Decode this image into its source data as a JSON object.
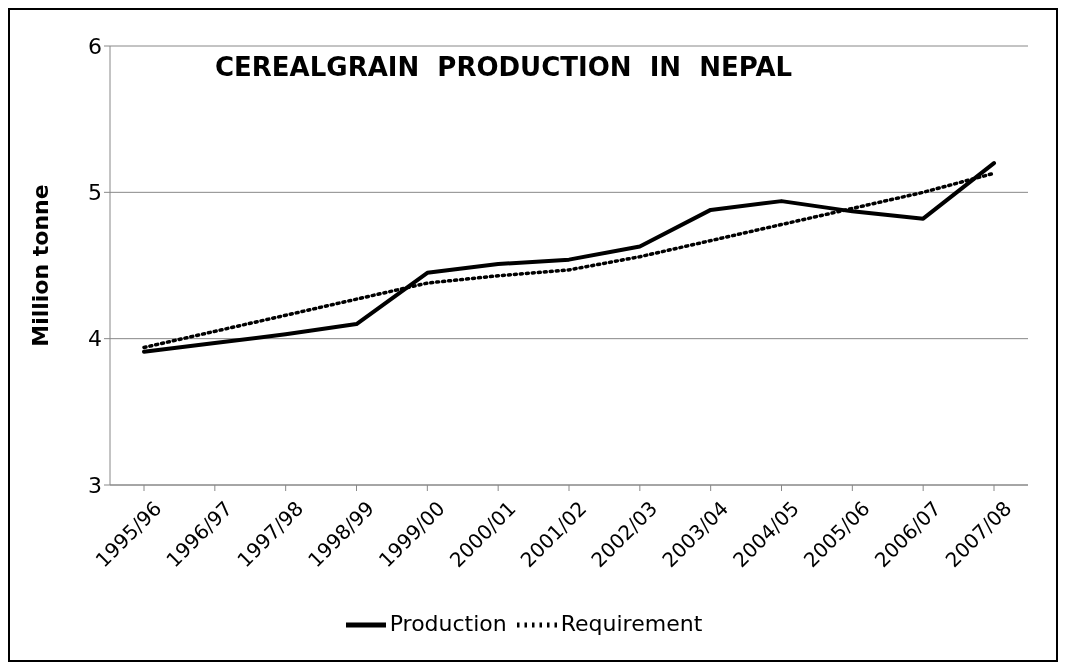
{
  "chart_data": {
    "type": "line",
    "title": "CEREALGRAIN  PRODUCTION  IN  NEPAL",
    "ylabel": "Million tonne",
    "categories": [
      "1995/96",
      "1996/97",
      "1997/98",
      "1998/99",
      "1999/00",
      "2000/01",
      "2001/02",
      "2002/03",
      "2003/04",
      "2004/05",
      "2005/06",
      "2006/07",
      "2007/08"
    ],
    "series": [
      {
        "name": "Production",
        "color": "#000000",
        "line_style": "solid",
        "values": [
          3.91,
          3.97,
          4.03,
          4.1,
          4.45,
          4.51,
          4.54,
          4.63,
          4.88,
          4.94,
          4.87,
          4.82,
          5.2
        ]
      },
      {
        "name": "Requirement",
        "color": "#000000",
        "line_style": "dotted",
        "values": [
          3.94,
          4.05,
          4.16,
          4.27,
          4.38,
          4.43,
          4.47,
          4.56,
          4.67,
          4.78,
          4.89,
          5.0,
          5.13
        ]
      }
    ],
    "ylim": [
      3,
      6
    ],
    "yticks": [
      3,
      4,
      5,
      6
    ],
    "grid": "y",
    "legend": "bottom",
    "marker": "none"
  }
}
